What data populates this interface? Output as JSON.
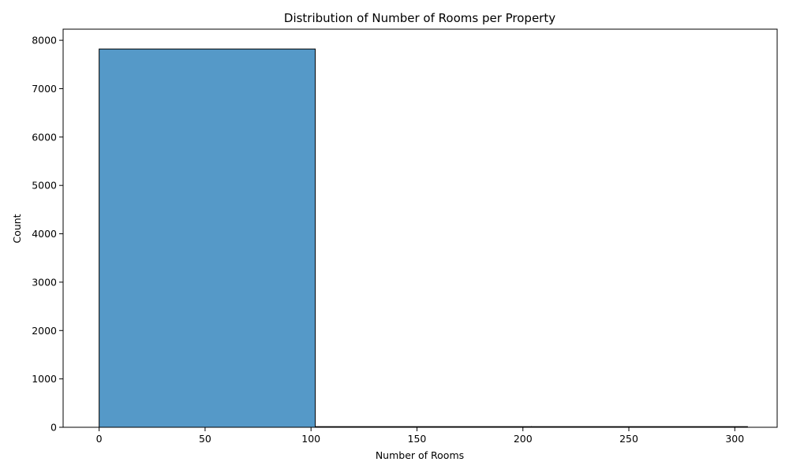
{
  "chart_data": {
    "type": "bar",
    "title": "Distribution of Number of Rooms per Property",
    "xlabel": "Number of Rooms",
    "ylabel": "Count",
    "bins": [
      {
        "x0": 0,
        "x1": 102,
        "count": 7820
      },
      {
        "x0": 102,
        "x1": 204,
        "count": 3
      },
      {
        "x0": 204,
        "x1": 306,
        "count": 2
      }
    ],
    "xlim": [
      -17,
      320
    ],
    "ylim": [
      0,
      8230
    ],
    "x_ticks": [
      0,
      50,
      100,
      150,
      200,
      250,
      300
    ],
    "y_ticks": [
      0,
      1000,
      2000,
      3000,
      4000,
      5000,
      6000,
      7000,
      8000
    ],
    "bar_color": "#5599c8",
    "edge_color": "#000000",
    "grid": false,
    "legend": "none"
  }
}
